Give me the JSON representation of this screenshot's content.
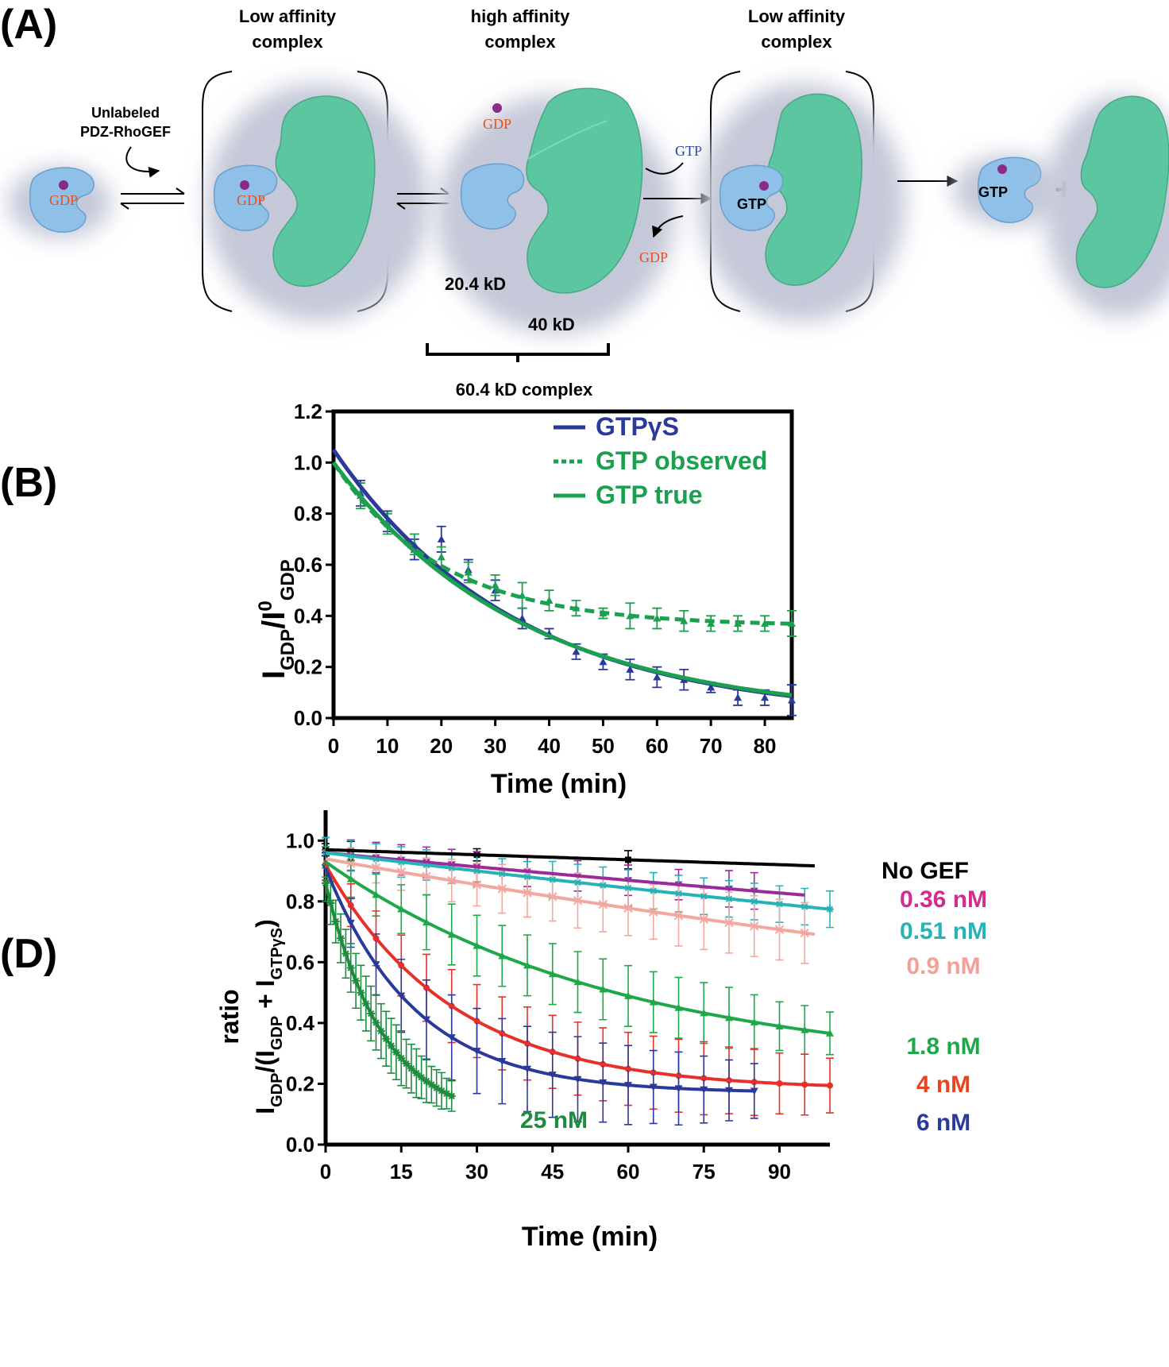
{
  "colors": {
    "gtpase": "#8fc0e8",
    "gef": "#5cc6a0",
    "shadow": "#c4c8d8",
    "nucleotide": "#8a2a8a",
    "gdp_text": "#e8501e",
    "gtp_text": "#1f3a9e"
  },
  "panel_a": {
    "panel_label": "(A)",
    "header_low1": [
      "Low affinity",
      "complex"
    ],
    "header_high": [
      "high affinity",
      "complex"
    ],
    "header_low2": [
      "Low affinity",
      "complex"
    ],
    "unlabeled": [
      "Unlabeled",
      "PDZ-RhoGEF"
    ],
    "gdp": "GDP",
    "gtp": "GTP",
    "mass_small": "20.4 kD",
    "mass_large": "40 kD",
    "complex_mass": "60.4 kD complex",
    "plus": "+"
  },
  "panel_b": {
    "panel_label": "(B)",
    "y_main": "I",
    "y_sub1": "GDP",
    "y_mid": "/I",
    "y_sup": "0",
    "y_sub2": "GDP",
    "chart_data": {
      "type": "line",
      "xlabel": "Time (min)",
      "xlim": [
        0,
        85
      ],
      "ylim": [
        0,
        1.2
      ],
      "x_ticks": [
        0,
        10,
        20,
        30,
        40,
        50,
        60,
        70,
        80
      ],
      "y_ticks": [
        "0.0",
        "0.2",
        "0.4",
        "0.6",
        "0.8",
        "1.0",
        "1.2"
      ],
      "legend_position": "top-right",
      "series": [
        {
          "name": "GTPγS",
          "color": "#2b3a9a",
          "style": "solid",
          "fit": {
            "model": "exp",
            "a": 1.05,
            "k": 0.0295,
            "c": 0
          },
          "points": [
            [
              5,
              0.88
            ],
            [
              10,
              0.77
            ],
            [
              15,
              0.66
            ],
            [
              20,
              0.7
            ],
            [
              25,
              0.58
            ],
            [
              30,
              0.5
            ],
            [
              35,
              0.39
            ],
            [
              40,
              0.33
            ],
            [
              45,
              0.26
            ],
            [
              50,
              0.22
            ],
            [
              55,
              0.19
            ],
            [
              60,
              0.16
            ],
            [
              65,
              0.15
            ],
            [
              70,
              0.12
            ],
            [
              75,
              0.08
            ],
            [
              80,
              0.08
            ],
            [
              85,
              0.07
            ]
          ],
          "errors": [
            0.05,
            0.04,
            0.04,
            0.05,
            0.04,
            0.04,
            0.04,
            0.02,
            0.03,
            0.03,
            0.04,
            0.04,
            0.04,
            0.02,
            0.03,
            0.03,
            0.06
          ]
        },
        {
          "name": "GTP observed",
          "color": "#1aa04e",
          "style": "dashed",
          "fit": {
            "model": "exp",
            "a": 0.64,
            "k": 0.05,
            "c": 0.36
          },
          "points": [
            [
              5,
              0.87
            ],
            [
              10,
              0.76
            ],
            [
              15,
              0.68
            ],
            [
              20,
              0.63
            ],
            [
              25,
              0.57
            ],
            [
              30,
              0.52
            ],
            [
              35,
              0.48
            ],
            [
              40,
              0.46
            ],
            [
              45,
              0.43
            ],
            [
              50,
              0.41
            ],
            [
              55,
              0.4
            ],
            [
              60,
              0.39
            ],
            [
              65,
              0.38
            ],
            [
              70,
              0.37
            ],
            [
              75,
              0.37
            ],
            [
              80,
              0.37
            ],
            [
              85,
              0.37
            ]
          ],
          "errors": [
            0.05,
            0.04,
            0.04,
            0.04,
            0.04,
            0.04,
            0.05,
            0.04,
            0.03,
            0.02,
            0.05,
            0.04,
            0.04,
            0.03,
            0.03,
            0.03,
            0.05
          ]
        },
        {
          "name": "GTP true",
          "color": "#1aa04e",
          "style": "solid",
          "fit": {
            "model": "exp",
            "a": 1.0,
            "k": 0.0284,
            "c": 0
          },
          "points": [],
          "errors": []
        }
      ]
    }
  },
  "panel_d": {
    "panel_label": "(D)",
    "y_line1": "ratio",
    "y_p1": "I",
    "y_s1": "GDP",
    "y_p2": "/(I",
    "y_s2": "GDP",
    "y_p3": " + I",
    "y_s3": "GTPγS",
    "y_p4": ")",
    "chart_data": {
      "type": "line",
      "xlabel": "Time (min)",
      "xlim": [
        0,
        100
      ],
      "ylim": [
        0,
        1.1
      ],
      "x_ticks": [
        0,
        15,
        30,
        45,
        60,
        75,
        90
      ],
      "y_ticks": [
        "0.0",
        "0.2",
        "0.4",
        "0.6",
        "0.8",
        "1.0"
      ],
      "series": [
        {
          "name": "No GEF",
          "label_color": "#000000",
          "color": "#000000",
          "a": 0.97,
          "k": 0.00058,
          "c": 0,
          "xmax": 97,
          "marker": "square",
          "point_x": [
            0,
            5,
            30,
            60
          ],
          "errors": [
            0.02,
            0.03,
            0.02,
            0.03
          ]
        },
        {
          "name": "0.36 nM",
          "label_color": "#d12c8e",
          "color": "#9b2a9b",
          "a": 0.96,
          "k": 0.00165,
          "c": 0,
          "xmax": 95,
          "marker": "tri-down",
          "point_x": [
            0,
            5,
            10,
            15,
            20,
            25,
            30,
            40,
            50,
            60,
            70,
            80,
            85
          ],
          "errors": [
            0.05,
            0.05,
            0.05,
            0.05,
            0.05,
            0.05,
            0.05,
            0.05,
            0.05,
            0.05,
            0.05,
            0.06,
            0.06
          ]
        },
        {
          "name": "0.51 nM",
          "label_color": "#25b3b8",
          "color": "#25b3b8",
          "a": 0.96,
          "k": 0.00215,
          "c": 0,
          "xmax": 100,
          "marker": "star",
          "point_x": [
            0,
            5,
            10,
            15,
            20,
            25,
            30,
            35,
            40,
            45,
            50,
            55,
            60,
            65,
            70,
            75,
            80,
            85,
            90,
            95,
            100
          ],
          "errors": [
            0.05,
            0.05,
            0.05,
            0.05,
            0.05,
            0.05,
            0.05,
            0.05,
            0.05,
            0.06,
            0.06,
            0.06,
            0.06,
            0.06,
            0.06,
            0.06,
            0.06,
            0.06,
            0.06,
            0.06,
            0.06
          ]
        },
        {
          "name": "0.9 nM",
          "label_color": "#f2a098",
          "color": "#f2a8a0",
          "a": 0.94,
          "k": 0.00316,
          "c": 0,
          "xmax": 97,
          "marker": "x",
          "point_x": [
            5,
            10,
            15,
            20,
            25,
            30,
            35,
            40,
            45,
            50,
            55,
            60,
            65,
            70,
            75,
            80,
            85,
            90,
            95
          ],
          "errors": [
            0.05,
            0.05,
            0.06,
            0.06,
            0.07,
            0.07,
            0.08,
            0.08,
            0.08,
            0.09,
            0.09,
            0.09,
            0.09,
            0.1,
            0.1,
            0.1,
            0.1,
            0.1,
            0.1
          ]
        },
        {
          "name": "1.8 nM",
          "label_color": "#1fa84a",
          "color": "#1fa84a",
          "a": 0.69,
          "k": 0.017,
          "c": 0.24,
          "xmax": 100,
          "marker": "triangle",
          "point_x": [
            0,
            5,
            10,
            15,
            20,
            25,
            30,
            35,
            40,
            45,
            50,
            55,
            60,
            65,
            70,
            75,
            80,
            85,
            90,
            95,
            100
          ],
          "errors": [
            0.05,
            0.06,
            0.07,
            0.08,
            0.09,
            0.1,
            0.1,
            0.1,
            0.1,
            0.1,
            0.1,
            0.1,
            0.1,
            0.1,
            0.1,
            0.1,
            0.1,
            0.09,
            0.08,
            0.08,
            0.07
          ]
        },
        {
          "name": "4 nM",
          "label_color": "#e8441e",
          "color": "#e8302a",
          "a": 0.74,
          "k": 0.0395,
          "c": 0.18,
          "xmax": 100,
          "marker": "circle",
          "point_x": [
            0,
            5,
            10,
            15,
            20,
            25,
            30,
            35,
            40,
            45,
            50,
            55,
            60,
            65,
            70,
            75,
            80,
            85,
            90,
            95,
            100
          ],
          "errors": [
            0.05,
            0.07,
            0.09,
            0.1,
            0.11,
            0.12,
            0.12,
            0.12,
            0.12,
            0.12,
            0.12,
            0.12,
            0.12,
            0.12,
            0.12,
            0.12,
            0.11,
            0.11,
            0.1,
            0.1,
            0.09
          ]
        },
        {
          "name": "6 nM",
          "label_color": "#2b3a9a",
          "color": "#2b3a9a",
          "a": 0.74,
          "k": 0.056,
          "c": 0.17,
          "xmax": 85,
          "marker": "tri-down",
          "point_x": [
            0,
            5,
            10,
            15,
            20,
            25,
            30,
            35,
            40,
            45,
            50,
            55,
            60,
            65,
            70,
            75,
            80,
            85
          ],
          "errors": [
            0.05,
            0.08,
            0.1,
            0.12,
            0.13,
            0.14,
            0.14,
            0.14,
            0.14,
            0.14,
            0.14,
            0.13,
            0.13,
            0.12,
            0.12,
            0.11,
            0.1,
            0.09
          ]
        },
        {
          "name": "25 nM",
          "label_color": "#1e8c3e",
          "color": "#1e8c3e",
          "a": 0.79,
          "k": 0.087,
          "c": 0.07,
          "xmax": 25,
          "marker": "star",
          "point_x": [
            0,
            1,
            2,
            3,
            4,
            5,
            6,
            7,
            8,
            9,
            10,
            11,
            12,
            13,
            14,
            15,
            16,
            17,
            18,
            19,
            20,
            21,
            22,
            23,
            24,
            25
          ],
          "errors": [
            0.06,
            0.07,
            0.07,
            0.08,
            0.08,
            0.08,
            0.09,
            0.09,
            0.09,
            0.09,
            0.09,
            0.09,
            0.09,
            0.09,
            0.09,
            0.09,
            0.08,
            0.08,
            0.08,
            0.07,
            0.07,
            0.06,
            0.06,
            0.06,
            0.05,
            0.05
          ]
        }
      ]
    }
  }
}
